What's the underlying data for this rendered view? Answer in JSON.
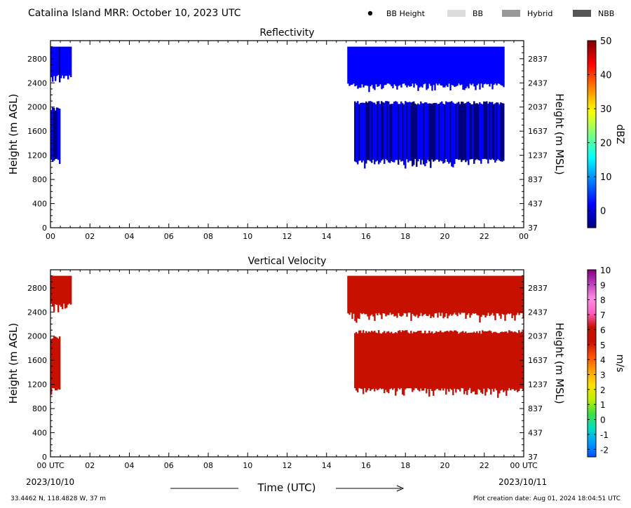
{
  "header": {
    "title": "Catalina Island MRR:  October 10, 2023 UTC",
    "legend": [
      {
        "label": "BB Height",
        "kind": "dot",
        "color": "#000000"
      },
      {
        "label": "BB",
        "kind": "rect",
        "color": "#dcdcdc"
      },
      {
        "label": "Hybrid",
        "kind": "rect",
        "color": "#999999"
      },
      {
        "label": "NBB",
        "kind": "rect",
        "color": "#555555"
      }
    ]
  },
  "footer": {
    "location": "33.4462 N, 118.4828 W, 37 m",
    "creation_date": "Plot creation date: Aug 01, 2024 18:04:51 UTC",
    "xlabel": "Time (UTC)",
    "start_date": "2023/10/10",
    "end_date": "2023/10/11"
  },
  "chart_data": [
    {
      "type": "heatmap",
      "title": "Reflectivity",
      "xlabel": "",
      "ylabel_left": "Height (m AGL)",
      "ylabel_right": "Height (m MSL)",
      "x_ticklabels": [
        "00",
        "02",
        "04",
        "06",
        "08",
        "10",
        "12",
        "14",
        "16",
        "18",
        "20",
        "22",
        "00"
      ],
      "x_ticks_hours": [
        0,
        2,
        4,
        6,
        8,
        10,
        12,
        14,
        16,
        18,
        20,
        22,
        24
      ],
      "xlim_hours": [
        0,
        24
      ],
      "ylim_m_agl": [
        0,
        3100
      ],
      "y_ticks_left": [
        0,
        400,
        800,
        1200,
        1600,
        2000,
        2400,
        2800
      ],
      "y_ticks_right": [
        37,
        437,
        837,
        1237,
        1637,
        2037,
        2437,
        2837
      ],
      "colorbar": {
        "label": "dBZ",
        "range": [
          -5,
          50
        ],
        "ticks": [
          0,
          10,
          20,
          30,
          40,
          50
        ],
        "colors": [
          "#00007f",
          "#0000ff",
          "#007fff",
          "#00ffff",
          "#7fff7f",
          "#ffff00",
          "#ff7f00",
          "#ff0000",
          "#7f0000"
        ]
      },
      "echo_regions": [
        {
          "t_start": 0.0,
          "t_end": 1.05,
          "h_bottom": 2500,
          "h_top": 3000,
          "dbz_mean": 3
        },
        {
          "t_start": 0.0,
          "t_end": 0.45,
          "h_bottom": 1100,
          "h_top": 2000,
          "dbz_mean": 1
        },
        {
          "t_start": 15.05,
          "t_end": 23.0,
          "h_bottom": 2350,
          "h_top": 3000,
          "dbz_mean": 4
        },
        {
          "t_start": 15.4,
          "t_end": 23.0,
          "h_bottom": 1100,
          "h_top": 2100,
          "dbz_mean": 1
        }
      ]
    },
    {
      "type": "heatmap",
      "title": "Vertical Velocity",
      "xlabel": "Time (UTC)",
      "ylabel_left": "Height (m AGL)",
      "ylabel_right": "Height (m MSL)",
      "x_ticklabels": [
        "00 UTC",
        "02",
        "04",
        "06",
        "08",
        "10",
        "12",
        "14",
        "16",
        "18",
        "20",
        "22",
        "00 UTC"
      ],
      "x_ticks_hours": [
        0,
        2,
        4,
        6,
        8,
        10,
        12,
        14,
        16,
        18,
        20,
        22,
        24
      ],
      "xlim_hours": [
        0,
        24
      ],
      "ylim_m_agl": [
        0,
        3100
      ],
      "y_ticks_left": [
        0,
        400,
        800,
        1200,
        1600,
        2000,
        2400,
        2800
      ],
      "y_ticks_right": [
        37,
        437,
        837,
        1237,
        1637,
        2037,
        2437,
        2837
      ],
      "colorbar": {
        "label": "m/s",
        "range": [
          -2.5,
          10
        ],
        "ticks": [
          -2,
          -1,
          0,
          1,
          2,
          3,
          4,
          5,
          6,
          7,
          8,
          9,
          10
        ],
        "colors": [
          "#0050ff",
          "#00a0ff",
          "#00e0c0",
          "#40e040",
          "#c0f000",
          "#ffe000",
          "#ffa000",
          "#ff5000",
          "#c81000",
          "#c81000",
          "#ff60c0",
          "#ff90e0",
          "#c040c0",
          "#800080"
        ]
      },
      "echo_regions": [
        {
          "t_start": 0.0,
          "t_end": 1.05,
          "h_bottom": 2500,
          "h_top": 3000,
          "velocity_mean": 6
        },
        {
          "t_start": 0.0,
          "t_end": 0.45,
          "h_bottom": 1100,
          "h_top": 2000,
          "velocity_mean": 6
        },
        {
          "t_start": 15.05,
          "t_end": 24.0,
          "h_bottom": 2350,
          "h_top": 3000,
          "velocity_mean": 6
        },
        {
          "t_start": 15.4,
          "t_end": 24.0,
          "h_bottom": 1100,
          "h_top": 2100,
          "velocity_mean": 6
        }
      ]
    }
  ]
}
